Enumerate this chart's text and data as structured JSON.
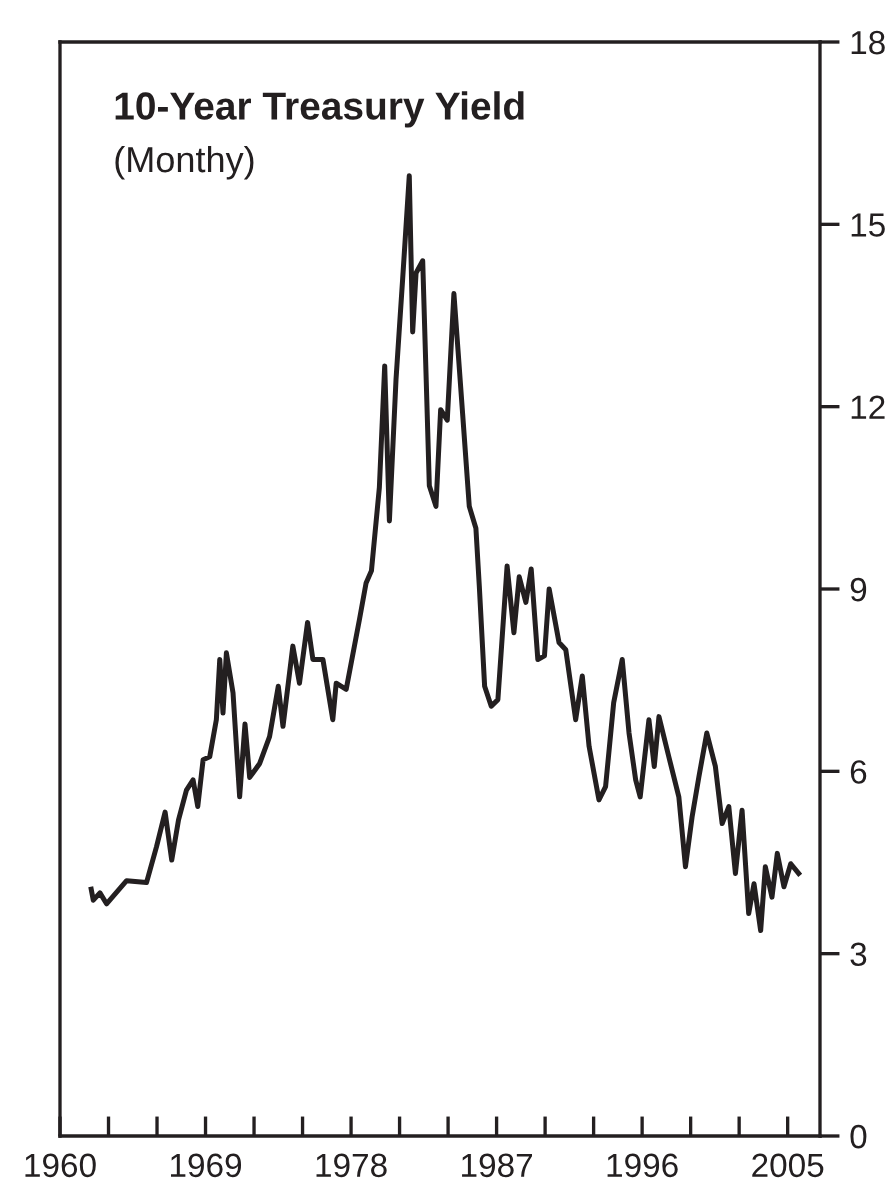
{
  "chart_data": {
    "type": "line",
    "title": "10-Year Treasury Yield",
    "subtitle": "(Monthy)",
    "x": [
      1961.93,
      1962.06,
      1962.47,
      1962.88,
      1964.12,
      1965.35,
      1965.97,
      1966.5,
      1966.91,
      1967.33,
      1967.82,
      1968.23,
      1968.52,
      1968.85,
      1969.26,
      1969.67,
      1969.88,
      1970.08,
      1970.29,
      1970.7,
      1971.11,
      1971.44,
      1971.73,
      1972.35,
      1972.96,
      1973.5,
      1973.79,
      1974.4,
      1974.81,
      1975.31,
      1975.64,
      1976.26,
      1976.87,
      1977.08,
      1977.7,
      1978.52,
      1978.93,
      1979.26,
      1979.75,
      1980.08,
      1980.37,
      1980.78,
      1980.99,
      1981.19,
      1981.6,
      1981.81,
      1982.02,
      1982.43,
      1982.84,
      1983.25,
      1983.54,
      1983.95,
      1984.36,
      1984.9,
      1985.31,
      1985.72,
      1985.93,
      1986.26,
      1986.67,
      1987.08,
      1987.65,
      1988.07,
      1988.4,
      1988.81,
      1989.14,
      1989.55,
      1989.96,
      1990.25,
      1990.86,
      1991.28,
      1991.89,
      1992.3,
      1992.72,
      1993.33,
      1993.74,
      1994.24,
      1994.77,
      1995.19,
      1995.6,
      1995.88,
      1996.42,
      1996.75,
      1997.04,
      1997.65,
      1998.27,
      1998.68,
      1999.09,
      1999.51,
      2000.0,
      2000.53,
      2000.95,
      2001.36,
      2001.77,
      2002.18,
      2002.59,
      2002.92,
      2003.33,
      2003.62,
      2004.03,
      2004.36,
      2004.77,
      2005.19,
      2005.68
    ],
    "series": [
      {
        "color": "#231f20",
        "values": [
          4.06,
          3.88,
          4.0,
          3.82,
          4.2,
          4.17,
          4.76,
          5.33,
          4.54,
          5.2,
          5.69,
          5.86,
          5.42,
          6.19,
          6.24,
          6.85,
          7.84,
          6.96,
          7.95,
          7.29,
          5.58,
          6.78,
          5.9,
          6.13,
          6.57,
          7.4,
          6.74,
          8.06,
          7.45,
          8.45,
          7.84,
          7.84,
          6.85,
          7.45,
          7.35,
          8.5,
          9.1,
          9.3,
          10.67,
          12.67,
          10.12,
          12.45,
          13.3,
          14.1,
          15.8,
          13.23,
          14.2,
          14.4,
          10.7,
          10.36,
          11.95,
          11.78,
          13.86,
          11.88,
          10.36,
          10.0,
          9.05,
          7.4,
          7.07,
          7.18,
          9.38,
          8.28,
          9.2,
          8.78,
          9.33,
          7.84,
          7.9,
          9.0,
          8.12,
          8.0,
          6.85,
          7.57,
          6.41,
          5.53,
          5.75,
          7.13,
          7.84,
          6.63,
          5.86,
          5.58,
          6.85,
          6.08,
          6.9,
          6.24,
          5.58,
          4.43,
          5.25,
          5.91,
          6.63,
          6.08,
          5.14,
          5.42,
          4.32,
          5.36,
          3.66,
          4.15,
          3.38,
          4.43,
          3.93,
          4.65,
          4.1,
          4.48,
          4.32
        ]
      }
    ],
    "xlim": [
      1960,
      2007
    ],
    "ylim": [
      0,
      18
    ],
    "xticks": [
      1960,
      {
        "value": 1963,
        "label": null
      },
      {
        "value": 1966,
        "label": null
      },
      1969,
      {
        "value": 1972,
        "label": null
      },
      {
        "value": 1975,
        "label": null
      },
      1978,
      {
        "value": 1981,
        "label": null
      },
      {
        "value": 1984,
        "label": null
      },
      1987,
      {
        "value": 1990,
        "label": null
      },
      {
        "value": 1993,
        "label": null
      },
      1996,
      {
        "value": 1999,
        "label": null
      },
      {
        "value": 2002,
        "label": null
      },
      2005
    ],
    "yticks": [
      0,
      3,
      6,
      9,
      12,
      15,
      18
    ],
    "grid": false,
    "legend": false,
    "line_style": "solid",
    "marker": "none"
  }
}
